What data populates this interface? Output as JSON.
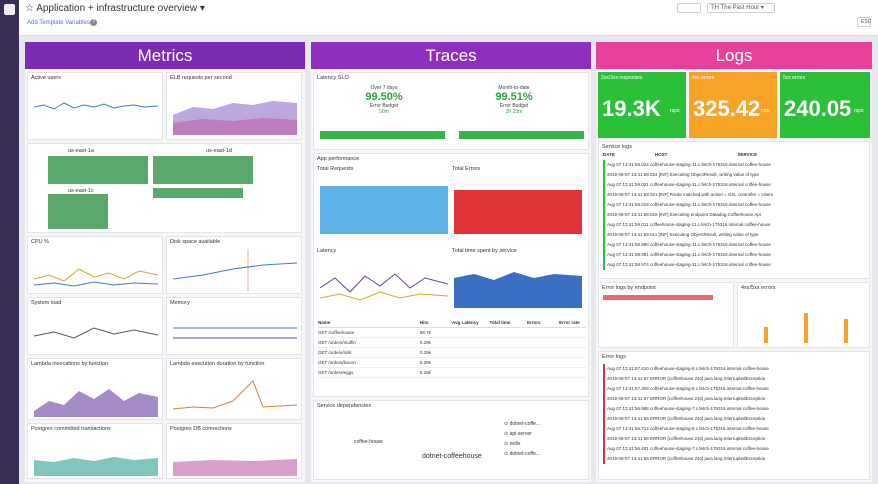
{
  "header": {
    "title": "Application + infrastructure overview",
    "add_vars": "Add Template Variables",
    "time_icon": "TH",
    "time": "The Past Hour",
    "esc": "ESC"
  },
  "colors": {
    "metrics": "#7a2cb5",
    "traces": "#8e2fc0",
    "logs": "#e7419a",
    "green": "#2cbf3a",
    "orange": "#f7a328"
  },
  "metrics": {
    "title": "Metrics",
    "active_users": "Active users",
    "elb": "ELB requests per second",
    "az1": "us-east-1a",
    "az2": "us-east-1d",
    "az3": "us-east-1c",
    "cpu": "CPU %",
    "disk": "Disk space available",
    "sysload": "System load",
    "memory": "Memory",
    "lambda_inv": "Lambda invocations by function",
    "lambda_dur": "Lambda execution duration by function",
    "pg_tx": "Postgres committed transactions",
    "pg_conn": "Postgres DB connections"
  },
  "traces": {
    "title": "Traces",
    "latency_slo": "Latency SLO",
    "over7": "Over 7 days",
    "over7_val": "99.50%",
    "mtd": "Month-to-date",
    "mtd_val": "99.51%",
    "eb1_label": "Error Budget",
    "eb1": "50m",
    "eb2_label": "Error Budget",
    "eb2": "2h 23m",
    "app_perf": "App performance",
    "total_requests": "Total Requests",
    "total_errors": "Total Errors",
    "latency": "Latency",
    "time_spent": "Total time spent by service",
    "service_deps": "Service dependencies",
    "central": "dotnet-coffeehouse",
    "left_node": "coffee-house",
    "table_headers": [
      "Name",
      "Hits",
      "Avg Latency",
      "Total time",
      "Errors",
      "Error rate"
    ],
    "table_rows": [
      [
        "GET /coffeehouse",
        "98.7k",
        "",
        "",
        "",
        ""
      ],
      [
        "GET /orders/muffin",
        "0.29k",
        "",
        "",
        "",
        ""
      ],
      [
        "GET /orders/milk",
        "0.29k",
        "",
        "",
        "",
        ""
      ],
      [
        "GET /orders/bacon",
        "0.28k",
        "",
        "",
        "",
        ""
      ],
      [
        "GET /orders/eggs",
        "0.28k",
        "",
        "",
        "",
        ""
      ]
    ],
    "deps": [
      "dotnet-coffe...",
      "api-server",
      "redis",
      "dotnet-coffe..."
    ]
  },
  "logs": {
    "title": "Logs",
    "kpi": [
      {
        "label": "2xx/3xx responses",
        "value": "19.3K",
        "unit": "rsps"
      },
      {
        "label": "4xx errors",
        "value": "325.42",
        "unit": "rsps"
      },
      {
        "label": "5xx errors",
        "value": "240.05",
        "unit": "rsps"
      }
    ],
    "service_logs": "Service logs",
    "cols": [
      "DATE",
      "HOST",
      "SERVICE"
    ],
    "service_rows": [
      "Aug 07 13:41:59.024  coffeehouse-staging-11.c.fetch-175316.internal  coffee-house",
      "2019-08-07 13:41:59.024  [INF] Executing ObjectResult, writing value of type",
      "Aug 07 13:41:59.021  coffeehouse-staging-11.c.fetch-175316.internal  coffee-house",
      "2019-08-07 13:41:59.021  [INF] Route matched with action = Get, controller = Users",
      "Aug 07 13:41:59.019  coffeehouse-staging-11.c.fetch-175316.internal  coffee-house",
      "2019-08-07 13:41:59.019  [INF] Executing endpoint Datadog.Coffeehouse.Api",
      "Aug 07 13:41:59.011  coffeehouse-staging-11.c.fetch-175316.internal  coffee-house",
      "2019-08-07 13:41:59.011  [INF] Executing ObjectResult, writing value of type",
      "Aug 07 13:41:58.990  coffeehouse-staging-11.c.fetch-175316.internal  coffee-house",
      "Aug 07 13:41:58.981  coffeehouse-staging-11.c.fetch-175316.internal  coffee-house",
      "Aug 07 13:41:58.974  coffeehouse-staging-11.c.fetch-175316.internal  coffee-house"
    ],
    "error_by_endpoint": "Error logs by endpoint",
    "xx_errors": "4xx/5xx errors",
    "error_logs": "Error logs",
    "error_rows": [
      "Aug 07 13:41:57.410  coffeehouse-staging-8.c.fetch-175316.internal  coffee-house",
      "2019-08-07 13:41:57  ERROR [coffeehouse:240]  java.lang.InterruptedException",
      "Aug 07 13:41:57.309  coffeehouse-staging-8.c.fetch-175316.internal  coffee-house",
      "2019-08-07 13:41:57  ERROR [coffeehouse:240]  java.lang.InterruptedException",
      "Aug 07 13:41:56.988  coffeehouse-staging-7.c.fetch-175316.internal  coffee-house",
      "2019-08-07 13:41:56  ERROR [coffeehouse:240]  java.lang.InterruptedException",
      "Aug 07 13:41:56.712  coffeehouse-staging-8.c.fetch-175316.internal  coffee-house",
      "2019-08-07 13:41:56  ERROR [coffeehouse:240]  java.lang.InterruptedException",
      "Aug 07 13:41:56.401  coffeehouse-staging-7.c.fetch-175316.internal  coffee-house",
      "2019-08-07 13:41:56  ERROR [coffeehouse:240]  java.lang.InterruptedException"
    ]
  }
}
